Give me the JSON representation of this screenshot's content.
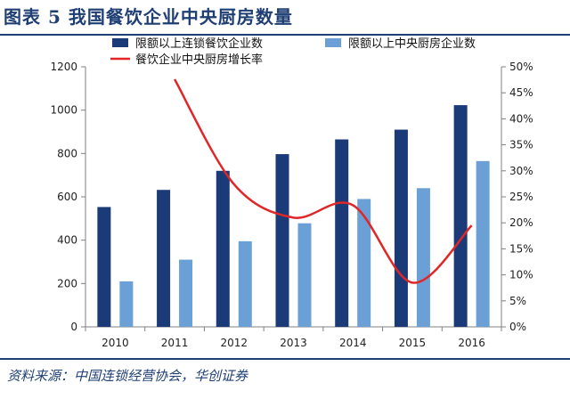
{
  "figure": {
    "title": "图表 5 我国餐饮企业中央厨房数量",
    "source": "资料来源：中国连锁经营协会，华创证券"
  },
  "chart_data": {
    "type": "bar",
    "categories": [
      "2010",
      "2011",
      "2012",
      "2013",
      "2014",
      "2015",
      "2016"
    ],
    "series": [
      {
        "name": "限额以上连锁餐饮企业数",
        "type": "bar",
        "axis": "left",
        "color": "#1b3a78",
        "values": [
          553,
          632,
          720,
          797,
          865,
          910,
          1023
        ]
      },
      {
        "name": "限额以上中央厨房企业数",
        "type": "bar",
        "axis": "left",
        "color": "#6aa0d6",
        "values": [
          210,
          310,
          395,
          478,
          590,
          640,
          765
        ]
      },
      {
        "name": "餐饮企业中央厨房增长率",
        "type": "line",
        "axis": "right",
        "color": "#e02626",
        "values": [
          47.6,
          27.4,
          21.0,
          23.4,
          8.5,
          19.5
        ],
        "x": [
          "2011",
          "2012",
          "2013",
          "2014",
          "2015",
          "2016"
        ]
      }
    ],
    "y_left": {
      "min": 0,
      "max": 1200,
      "ticks": [
        "0",
        "200",
        "400",
        "600",
        "800",
        "1000",
        "1200"
      ]
    },
    "y_right": {
      "min": 0,
      "max": 50,
      "ticks": [
        "0%",
        "5%",
        "10%",
        "15%",
        "20%",
        "25%",
        "30%",
        "35%",
        "40%",
        "45%",
        "50%"
      ]
    },
    "legend_position": "top",
    "grid": false
  }
}
